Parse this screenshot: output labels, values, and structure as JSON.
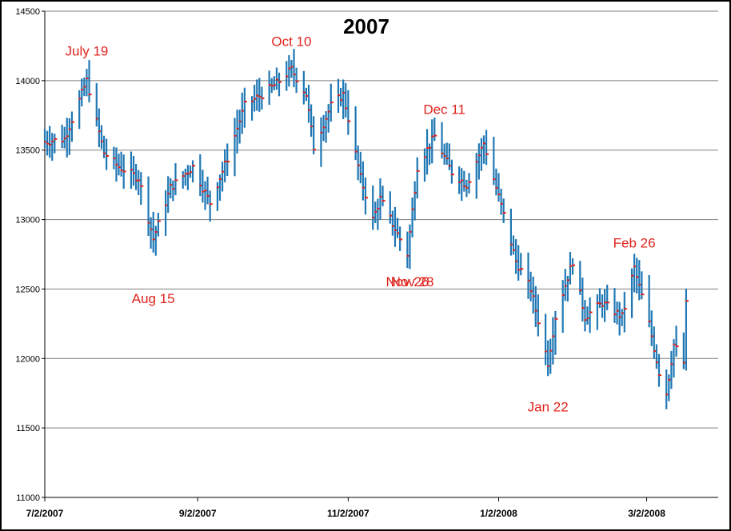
{
  "chart_data": {
    "type": "ohlc",
    "title": "2007",
    "xlabel": "",
    "ylabel": "",
    "ylim": [
      11000,
      14500
    ],
    "yticks": [
      11000,
      11500,
      12000,
      12500,
      13000,
      13500,
      14000,
      14500
    ],
    "xlim": [
      "2007-07-02",
      "2008-03-31"
    ],
    "xticks": [
      "7/2/2007",
      "9/2/2007",
      "11/2/2007",
      "1/2/2008",
      "3/2/2008"
    ],
    "grid": "horizontal",
    "colors": {
      "range_bar": "#1f77b4",
      "close_mark": "#e0231c",
      "annotation": "#e0231c",
      "grid": "#7f7f7f"
    },
    "annotations": [
      {
        "text": "July 19",
        "date": "2007-07-19",
        "value": 14180
      },
      {
        "text": "Aug 15",
        "date": "2007-08-15",
        "value": 12400
      },
      {
        "text": "Oct 10",
        "date": "2007-10-10",
        "value": 14250
      },
      {
        "text": "Nov 26",
        "date": "2007-11-26",
        "value": 12520
      },
      {
        "text": "Nov 28",
        "date": "2007-11-28",
        "value": 12520
      },
      {
        "text": "Dec 11",
        "date": "2007-12-11",
        "value": 13760
      },
      {
        "text": "Jan 22",
        "date": "2008-01-22",
        "value": 11620
      },
      {
        "text": "Feb 26",
        "date": "2008-02-26",
        "value": 12800
      }
    ],
    "anchors": [
      [
        "2007-07-02",
        13560
      ],
      [
        "2007-07-10",
        13580
      ],
      [
        "2007-07-19",
        14000
      ],
      [
        "2007-07-26",
        13480
      ],
      [
        "2007-08-01",
        13380
      ],
      [
        "2007-08-09",
        13300
      ],
      [
        "2007-08-15",
        12860
      ],
      [
        "2007-08-22",
        13230
      ],
      [
        "2007-08-31",
        13380
      ],
      [
        "2007-09-07",
        13120
      ],
      [
        "2007-09-14",
        13440
      ],
      [
        "2007-09-21",
        13820
      ],
      [
        "2007-09-28",
        13900
      ],
      [
        "2007-10-04",
        13980
      ],
      [
        "2007-10-10",
        14080
      ],
      [
        "2007-10-16",
        13900
      ],
      [
        "2007-10-19",
        13520
      ],
      [
        "2007-10-26",
        13820
      ],
      [
        "2007-10-31",
        13900
      ],
      [
        "2007-11-07",
        13300
      ],
      [
        "2007-11-12",
        13000
      ],
      [
        "2007-11-15",
        13150
      ],
      [
        "2007-11-26",
        12750
      ],
      [
        "2007-11-30",
        13380
      ],
      [
        "2007-12-07",
        13600
      ],
      [
        "2007-12-11",
        13450
      ],
      [
        "2007-12-14",
        13340
      ],
      [
        "2007-12-20",
        13250
      ],
      [
        "2007-12-27",
        13550
      ],
      [
        "2008-01-03",
        13100
      ],
      [
        "2008-01-09",
        12700
      ],
      [
        "2008-01-15",
        12500
      ],
      [
        "2008-01-22",
        11970
      ],
      [
        "2008-01-25",
        12300
      ],
      [
        "2008-02-01",
        12700
      ],
      [
        "2008-02-06",
        12300
      ],
      [
        "2008-02-13",
        12400
      ],
      [
        "2008-02-21",
        12300
      ],
      [
        "2008-02-26",
        12650
      ],
      [
        "2008-03-03",
        12250
      ],
      [
        "2008-03-07",
        11900
      ],
      [
        "2008-03-10",
        11750
      ],
      [
        "2008-03-13",
        12100
      ],
      [
        "2008-03-17",
        11970
      ],
      [
        "2008-03-18",
        12390
      ]
    ]
  }
}
